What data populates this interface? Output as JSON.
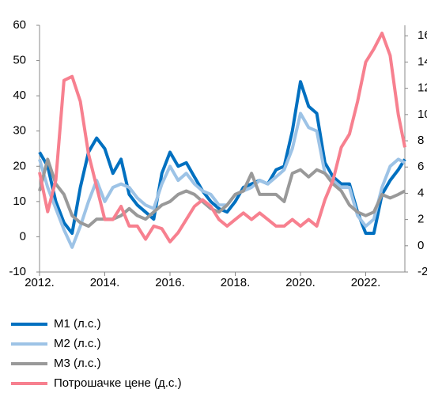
{
  "chart_data": {
    "type": "line",
    "x": [
      2012,
      2012.25,
      2012.5,
      2012.75,
      2013,
      2013.25,
      2013.5,
      2013.75,
      2014,
      2014.25,
      2014.5,
      2014.75,
      2015,
      2015.25,
      2015.5,
      2015.75,
      2016,
      2016.25,
      2016.5,
      2016.75,
      2017,
      2017.25,
      2017.5,
      2017.75,
      2018,
      2018.25,
      2018.5,
      2018.75,
      2019,
      2019.25,
      2019.5,
      2019.75,
      2020,
      2020.25,
      2020.5,
      2020.75,
      2021,
      2021.25,
      2021.5,
      2021.75,
      2022,
      2022.25,
      2022.5,
      2022.75,
      2023,
      2023.2
    ],
    "series": [
      {
        "name": "M1  (л.с.)",
        "color": "#0070c0",
        "axis": "y",
        "values": [
          24,
          20,
          10,
          4,
          1,
          14,
          24,
          28,
          25,
          18,
          22,
          12,
          9,
          7,
          5,
          18,
          24,
          20,
          21,
          17,
          13,
          10,
          8,
          7,
          10,
          14,
          15,
          16,
          15,
          19,
          20,
          30,
          44,
          37,
          35,
          21,
          17,
          15,
          15,
          7,
          1,
          1,
          12,
          16,
          19,
          22
        ]
      },
      {
        "name": "M2  (л.с.)",
        "color": "#9dc3e6",
        "axis": "y",
        "values": [
          22,
          14,
          8,
          2,
          -3,
          3,
          10,
          16,
          10,
          14,
          15,
          14,
          11,
          9,
          8,
          15,
          20,
          16,
          18,
          15,
          13,
          12,
          9,
          9,
          12,
          13,
          14,
          16,
          15,
          17,
          19,
          25,
          35,
          31,
          30,
          18,
          16,
          14,
          14,
          6,
          3,
          5,
          14,
          20,
          22,
          21
        ]
      },
      {
        "name": "M3  (л.с.)",
        "color": "#999999",
        "axis": "y",
        "values": [
          13,
          22,
          15,
          12,
          6,
          4,
          3,
          5,
          5,
          5,
          6,
          8,
          6,
          5,
          7,
          9,
          10,
          12,
          13,
          12,
          10,
          8,
          7,
          9,
          12,
          13,
          18,
          12,
          12,
          12,
          10,
          18,
          19,
          17,
          19,
          18,
          15,
          13,
          9,
          7,
          6,
          7,
          12,
          11,
          12,
          13
        ]
      },
      {
        "name": "Потрошачке  цене (д.с.)",
        "color": "#f7808f",
        "axis": "y2",
        "values": [
          5.6,
          2.6,
          5,
          12.6,
          12.9,
          11,
          7,
          4.5,
          2,
          2,
          3,
          1.5,
          1.5,
          0.5,
          1.5,
          1.3,
          0.3,
          1,
          2,
          3,
          3.5,
          3,
          2,
          1.5,
          2,
          2.5,
          2,
          2.5,
          2,
          1.5,
          1.5,
          2,
          1.5,
          2,
          1.5,
          3.5,
          5,
          7.5,
          8.5,
          11,
          14,
          15,
          16.2,
          14.5,
          10,
          7.5
        ]
      }
    ],
    "xlim": [
      2012,
      2023.2
    ],
    "xticks": [
      {
        "value": 2012,
        "label": "2012."
      },
      {
        "value": 2014,
        "label": "2014."
      },
      {
        "value": 2016,
        "label": "2016."
      },
      {
        "value": 2018,
        "label": "2018."
      },
      {
        "value": 2020,
        "label": "2020."
      },
      {
        "value": 2022,
        "label": "2022."
      }
    ],
    "ylim": [
      -10,
      60
    ],
    "yticks": [
      -10,
      0,
      10,
      20,
      30,
      40,
      50,
      60
    ],
    "y2lim": [
      -2,
      16.8
    ],
    "y2ticks": [
      -2,
      0,
      2,
      4,
      6,
      8,
      10,
      12,
      14,
      16
    ],
    "grid": false,
    "legend": "bottom"
  }
}
